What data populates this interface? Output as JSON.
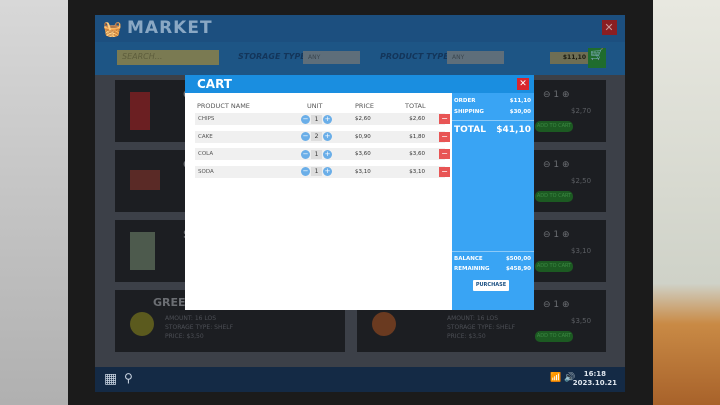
{
  "market": {
    "title": "MARKET",
    "close": "✕",
    "search_placeholder": "SEARCH...",
    "storage_label": "STORAGE TYPE",
    "storage_value": "ANY",
    "product_label": "PRODUCT TYPE",
    "product_value": "ANY",
    "money": "$11,10",
    "cards": [
      {
        "name": "CH",
        "price": "$2,70"
      },
      {
        "name": "CA",
        "price": "$2,50"
      },
      {
        "name": "SU",
        "price": "$3,10"
      },
      {
        "name": "GREEN",
        "price": "$3,50"
      }
    ],
    "card_text": [
      "AMOUNT: 16 LOS",
      "STORAGE TYPE: SHELF",
      "PRICE: $3,50"
    ],
    "qty": "1",
    "add_to_cart": "ADD TO CART"
  },
  "cart": {
    "title": "CART",
    "close": "✕",
    "headers": {
      "name": "PRODUCT NAME",
      "unit": "UNIT",
      "price": "PRICE",
      "total": "TOTAL"
    },
    "items": [
      {
        "name": "CHIPS",
        "qty": "1",
        "price": "$2,60",
        "total": "$2,60"
      },
      {
        "name": "CAKE",
        "qty": "2",
        "price": "$0,90",
        "total": "$1,80"
      },
      {
        "name": "COLA",
        "qty": "1",
        "price": "$3,60",
        "total": "$3,60"
      },
      {
        "name": "SODA",
        "qty": "1",
        "price": "$3,10",
        "total": "$3,10"
      }
    ],
    "order_label": "ORDER",
    "order": "$11,10",
    "shipping_label": "SHIPPING",
    "shipping": "$30,00",
    "total_label": "TOTAL",
    "total": "$41,10",
    "balance_label": "BALANCE",
    "balance": "$500,00",
    "remaining_label": "REMAINING",
    "remaining": "$458,90",
    "purchase": "PURCHASE"
  },
  "taskbar": {
    "time": "16:18",
    "date": "2023.10.21"
  }
}
